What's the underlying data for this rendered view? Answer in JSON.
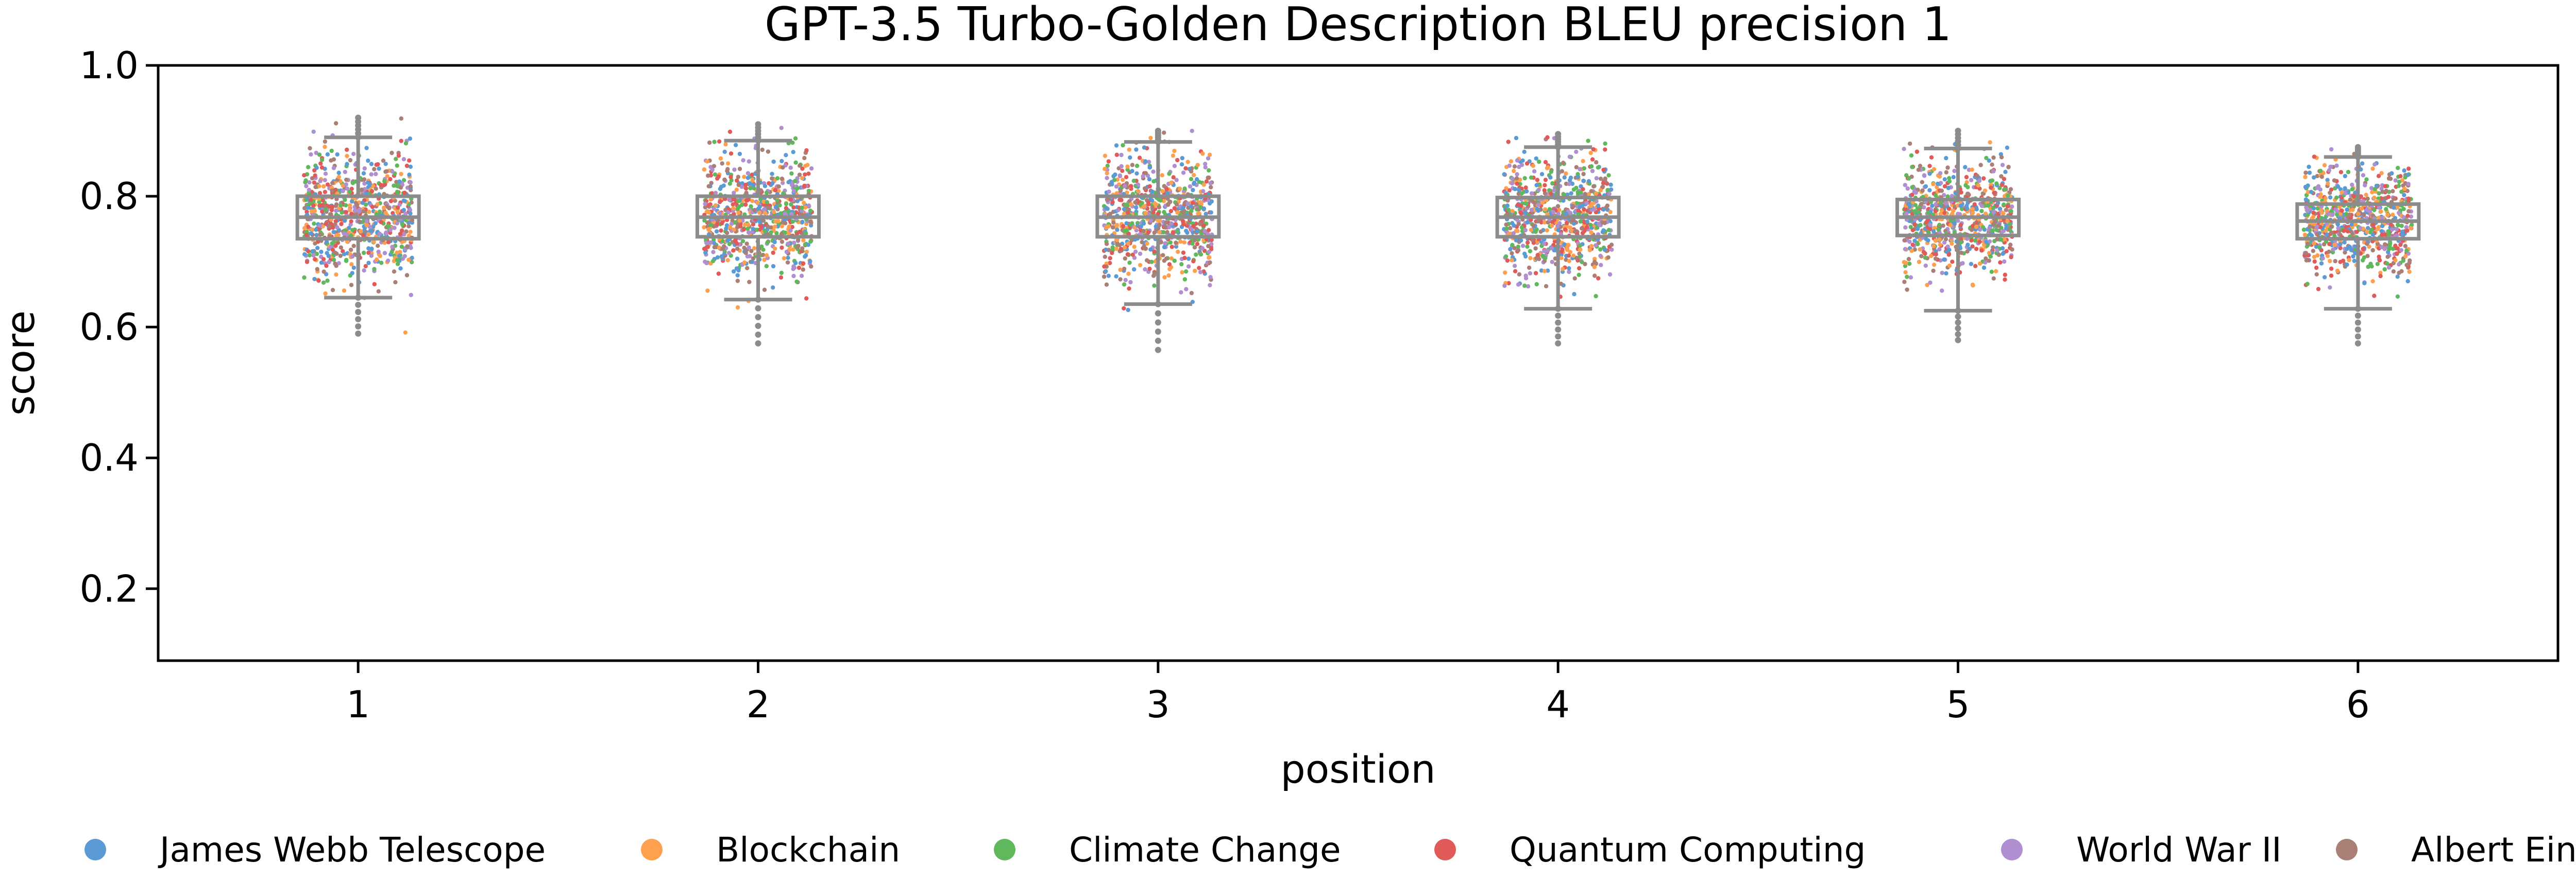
{
  "chart_data": {
    "type": "scatter",
    "title": "GPT-3.5 Turbo-Golden Description BLEU precision 1",
    "xlabel": "position",
    "ylabel": "score",
    "ylim": [
      0.09,
      1.0
    ],
    "xlim": [
      0.5,
      6.5
    ],
    "y_ticks": [
      "0.2",
      "0.4",
      "0.6",
      "0.8",
      "1.0"
    ],
    "x_categories": [
      "1",
      "2",
      "3",
      "4",
      "5",
      "6"
    ],
    "grid": false,
    "legend_position": "bottom",
    "series": [
      {
        "name": "James Webb Telescope",
        "color": "#5b9bd5"
      },
      {
        "name": "Blockchain",
        "color": "#ffa04f"
      },
      {
        "name": "Climate Change",
        "color": "#5fb85c"
      },
      {
        "name": "Quantum Computing",
        "color": "#e05a5a"
      },
      {
        "name": "World War II",
        "color": "#b08fd0"
      },
      {
        "name": "Albert Einstein",
        "color": "#aa7f76"
      }
    ],
    "boxes": [
      {
        "position": 1,
        "whisker_low": 0.645,
        "q1": 0.735,
        "median": 0.768,
        "q3": 0.8,
        "whisker_high": 0.89,
        "min": 0.59,
        "max": 0.92
      },
      {
        "position": 2,
        "whisker_low": 0.642,
        "q1": 0.738,
        "median": 0.768,
        "q3": 0.8,
        "whisker_high": 0.885,
        "min": 0.575,
        "max": 0.91
      },
      {
        "position": 3,
        "whisker_low": 0.635,
        "q1": 0.738,
        "median": 0.768,
        "q3": 0.8,
        "whisker_high": 0.883,
        "min": 0.565,
        "max": 0.9
      },
      {
        "position": 4,
        "whisker_low": 0.628,
        "q1": 0.738,
        "median": 0.768,
        "q3": 0.798,
        "whisker_high": 0.875,
        "min": 0.575,
        "max": 0.895
      },
      {
        "position": 5,
        "whisker_low": 0.625,
        "q1": 0.74,
        "median": 0.768,
        "q3": 0.795,
        "whisker_high": 0.873,
        "min": 0.58,
        "max": 0.9
      },
      {
        "position": 6,
        "whisker_low": 0.628,
        "q1": 0.735,
        "median": 0.762,
        "q3": 0.788,
        "whisker_high": 0.86,
        "min": 0.575,
        "max": 0.875
      }
    ],
    "points_per_series_per_position": 130
  }
}
